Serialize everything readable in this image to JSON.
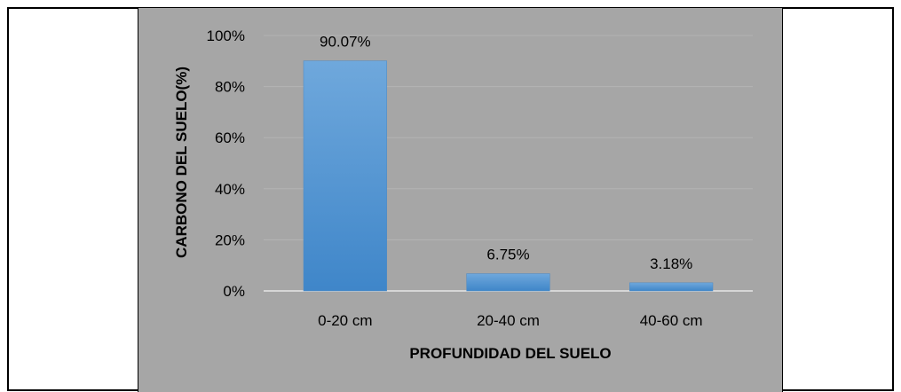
{
  "chart_data": {
    "type": "bar",
    "categories": [
      "0-20 cm",
      "20-40 cm",
      "40-60 cm"
    ],
    "values": [
      90.07,
      6.75,
      3.18
    ],
    "data_labels": [
      "90.07%",
      "6.75%",
      "3.18%"
    ],
    "ylim": [
      0,
      100
    ],
    "yticks": [
      "0%",
      "20%",
      "40%",
      "60%",
      "80%",
      "100%"
    ],
    "xlabel": "PROFUNDIDAD DEL SUELO",
    "ylabel": "CARBONO DEL SUELO(%)",
    "grid": true,
    "bar_color": "#5b9bd5",
    "plot_background": "#a6a6a6"
  }
}
